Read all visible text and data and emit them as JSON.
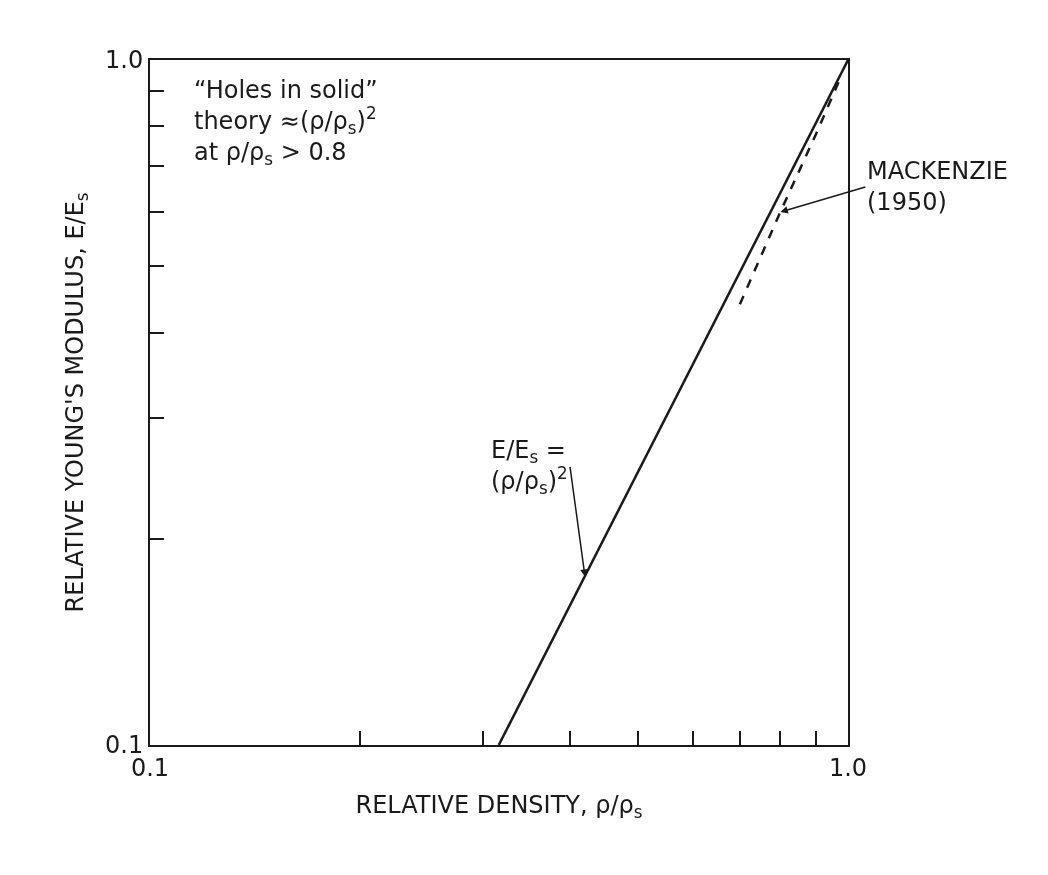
{
  "chart_data": {
    "type": "line",
    "xlabel": "RELATIVE DENSITY, ρ/ρ$_{s}$",
    "ylabel": "RELATIVE YOUNG'S MODULUS, E/E$_{s}$",
    "log": "xy",
    "marker": "none",
    "xlim": [
      0.1,
      1.0
    ],
    "ylim": [
      0.1,
      1.0
    ],
    "xticks": [
      {
        "value": 0.1,
        "label": "0.1"
      },
      {
        "value": 0.2,
        "label": null
      },
      {
        "value": 0.3,
        "label": null
      },
      {
        "value": 0.4,
        "label": null
      },
      {
        "value": 0.5,
        "label": null
      },
      {
        "value": 0.6,
        "label": null
      },
      {
        "value": 0.7,
        "label": null
      },
      {
        "value": 0.8,
        "label": null
      },
      {
        "value": 0.9,
        "label": null
      },
      {
        "value": 1.0,
        "label": "1.0"
      }
    ],
    "yticks": [
      {
        "value": 0.1,
        "label": "0.1"
      },
      {
        "value": 0.2,
        "label": null
      },
      {
        "value": 0.3,
        "label": null
      },
      {
        "value": 0.4,
        "label": null
      },
      {
        "value": 0.5,
        "label": null
      },
      {
        "value": 0.6,
        "label": null
      },
      {
        "value": 0.7,
        "label": null
      },
      {
        "value": 0.8,
        "label": null
      },
      {
        "value": 0.9,
        "label": null
      },
      {
        "value": 1.0,
        "label": "1.0"
      }
    ],
    "series": [
      {
        "color": "#1a1a1a",
        "line_style": "solid",
        "x": [
          0.316,
          1.0
        ],
        "values": [
          0.1,
          1.0
        ]
      },
      {
        "color": "#1a1a1a",
        "line_style": "dashed",
        "x": [
          0.7,
          0.8,
          0.9,
          0.97
        ],
        "values": [
          0.44,
          0.6,
          0.78,
          0.93
        ]
      }
    ],
    "annotations": [
      "“Holes in solid”\ntheory ≈(ρ/ρ$_{s}$)$^{2}$\nat ρ/ρ$_{s}$ > 0.8",
      {
        "text": "MACKENZIE\n(1950)",
        "x": 0.8,
        "y": 0.6
      },
      {
        "text": "E/E$_{s}$ =\n(ρ/ρ$_{s}$)$^{2}$",
        "x": 0.42,
        "y": 0.176
      }
    ]
  }
}
